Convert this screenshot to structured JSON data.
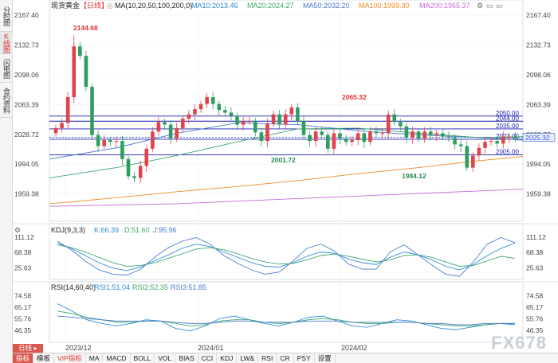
{
  "side_tabs": [
    {
      "label": "分时图",
      "active": false
    },
    {
      "label": "K线图",
      "active": true
    },
    {
      "label": "闪电图",
      "active": false
    },
    {
      "label": "合约资料",
      "active": false
    }
  ],
  "main": {
    "symbol": "现货黄金",
    "period": "【日线】",
    "ma_header": "MA(10,20,50,100,200,0)",
    "ma_values": [
      {
        "label": "MA10:2013.46",
        "color": "#2a8cd6"
      },
      {
        "label": "MA20:2024.27",
        "color": "#3aa86b"
      },
      {
        "label": "MA50:2032.20",
        "color": "#4a7bd0"
      },
      {
        "label": "MA100:1999.30",
        "color": "#f08a24"
      },
      {
        "label": "MA200:1965.37",
        "color": "#c86bd8"
      }
    ],
    "y_labels": [
      "2167.40",
      "2132.73",
      "2098.06",
      "2063.39",
      "2028.72",
      "1994.05",
      "1959.38"
    ],
    "y_range": [
      1935,
      2172
    ],
    "levels": [
      {
        "label": "2050.00",
        "value": 2050
      },
      {
        "label": "2044.00",
        "value": 2044
      },
      {
        "label": "2035.00",
        "value": 2035
      },
      {
        "label": "2023.00",
        "value": 2023
      },
      {
        "label": "2005.00",
        "value": 2005
      }
    ],
    "current_price": "2025.32",
    "right_axis_mid": "2028.72",
    "annotations": [
      {
        "label": "2144.68",
        "color": "#d33"
      },
      {
        "label": "2065.32",
        "color": "#d33"
      },
      {
        "label": "2001.72",
        "color": "#2a8a55"
      },
      {
        "label": "1984.12",
        "color": "#2a8a55"
      }
    ],
    "colors": {
      "up": "#e0434b",
      "down": "#2e9e5e",
      "level_line": "#1a1ab0",
      "current": "#3a5bd9"
    }
  },
  "kdj": {
    "header": "KDJ(9,3,3)",
    "values": [
      {
        "label": "K:66.39",
        "color": "#2a8cd6"
      },
      {
        "label": "D:51.60",
        "color": "#3aa86b"
      },
      {
        "label": "J:95.96",
        "color": "#4a7bd0"
      }
    ],
    "y_labels": [
      "111.12",
      "68.38",
      "25.63"
    ]
  },
  "rsi": {
    "header": "RSI(14,60,40)",
    "values": [
      {
        "label": "RSI1:51.04",
        "color": "#2a8cd6"
      },
      {
        "label": "RSI2:52.35",
        "color": "#3aa86b"
      },
      {
        "label": "RSI3:51.85",
        "color": "#4a7bd0"
      }
    ],
    "y_labels": [
      "74.58",
      "65.17",
      "55.76",
      "46.35"
    ]
  },
  "x_labels": [
    "2023/12",
    "2024/01",
    "2024/02"
  ],
  "bottom_bar": {
    "left_tab": "日线",
    "tabs": [
      "指标",
      "模板",
      "VIP指标",
      "MA",
      "MACD",
      "BOLL",
      "VOL",
      "BIAS",
      "CCI",
      "KDJ",
      "LW&",
      "RSI",
      "CR",
      "PSY",
      "设置"
    ],
    "active": "VIP指标"
  },
  "watermark": "FX678"
}
